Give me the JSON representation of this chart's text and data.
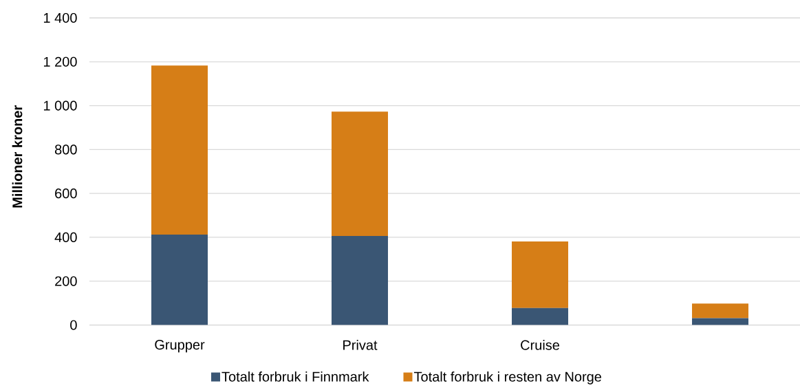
{
  "chart_data": {
    "type": "bar",
    "stacked": true,
    "ylabel": "Millioner kroner",
    "categories": [
      "Grupper",
      "Privat",
      "Cruise",
      null
    ],
    "series": [
      {
        "name": "Totalt forbruk i Finnmark",
        "color": "#3a5674",
        "values": [
          412,
          406,
          78,
          31
        ]
      },
      {
        "name": "Totalt forbruk i resten av Norge",
        "color": "#d67e17",
        "values": [
          771,
          567,
          303,
          67
        ]
      }
    ],
    "ylim": [
      0,
      1400
    ],
    "yticks": [
      0,
      200,
      400,
      600,
      800,
      {
        "value": 1000,
        "label": "1 000"
      },
      {
        "value": 1200,
        "label": "1 200"
      },
      {
        "value": 1400,
        "label": "1 400"
      }
    ],
    "grid": "y",
    "legend": "bottom"
  }
}
